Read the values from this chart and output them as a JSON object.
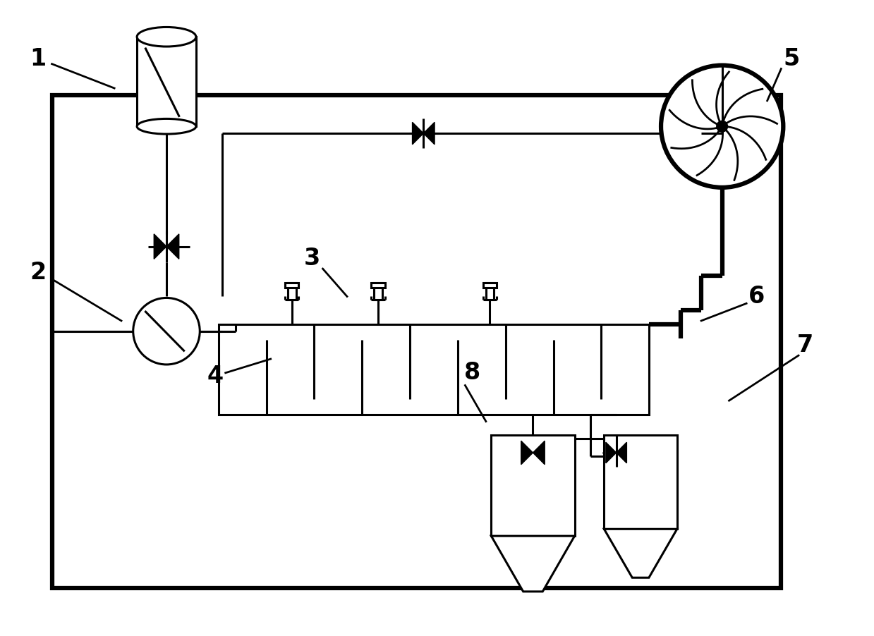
{
  "bg_color": "#ffffff",
  "line_color": "#000000",
  "lw": 2.2,
  "lw_thick": 4.5,
  "fig_width": 12.39,
  "fig_height": 9.02
}
